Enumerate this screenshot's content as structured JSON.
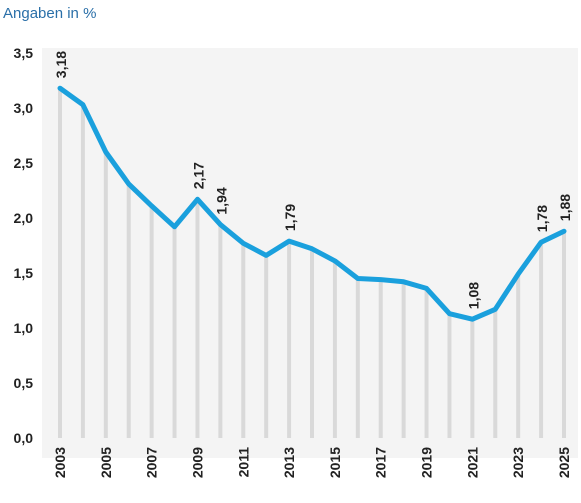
{
  "chart_data": {
    "type": "line",
    "unit_label": "Angaben in %",
    "x": [
      2003,
      2004,
      2005,
      2006,
      2007,
      2008,
      2009,
      2010,
      2011,
      2012,
      2013,
      2014,
      2015,
      2016,
      2017,
      2018,
      2019,
      2020,
      2021,
      2022,
      2023,
      2024,
      2025
    ],
    "values": [
      3.18,
      3.03,
      2.6,
      2.31,
      2.11,
      1.92,
      2.17,
      1.94,
      1.77,
      1.66,
      1.79,
      1.72,
      1.61,
      1.45,
      1.44,
      1.42,
      1.36,
      1.13,
      1.08,
      1.17,
      1.49,
      1.78,
      1.88
    ],
    "x_tick_labels": [
      "2003",
      "2005",
      "2007",
      "2009",
      "2011",
      "2013",
      "2015",
      "2017",
      "2019",
      "2021",
      "2023",
      "2025"
    ],
    "y_ticks": [
      0,
      0.5,
      1.0,
      1.5,
      2.0,
      2.5,
      3.0,
      3.5
    ],
    "y_tick_labels": [
      "0,0",
      "0,5",
      "1,0",
      "1,5",
      "2,0",
      "2,5",
      "3,0",
      "3,5"
    ],
    "ylim": [
      0,
      3.5
    ],
    "data_labels": [
      {
        "x": 2003,
        "value": 3.18,
        "text": "3,18"
      },
      {
        "x": 2009,
        "value": 2.17,
        "text": "2,17"
      },
      {
        "x": 2010,
        "value": 1.94,
        "text": "1,94"
      },
      {
        "x": 2013,
        "value": 1.79,
        "text": "1,79"
      },
      {
        "x": 2021,
        "value": 1.08,
        "text": "1,08"
      },
      {
        "x": 2024,
        "value": 1.78,
        "text": "1,78"
      },
      {
        "x": 2025,
        "value": 1.88,
        "text": "1,88"
      }
    ],
    "line_color": "#1aa0dd",
    "drop_line_color": "#d9d9d9",
    "background_color": "#f4f4f4",
    "grid": false,
    "legend": "none"
  }
}
